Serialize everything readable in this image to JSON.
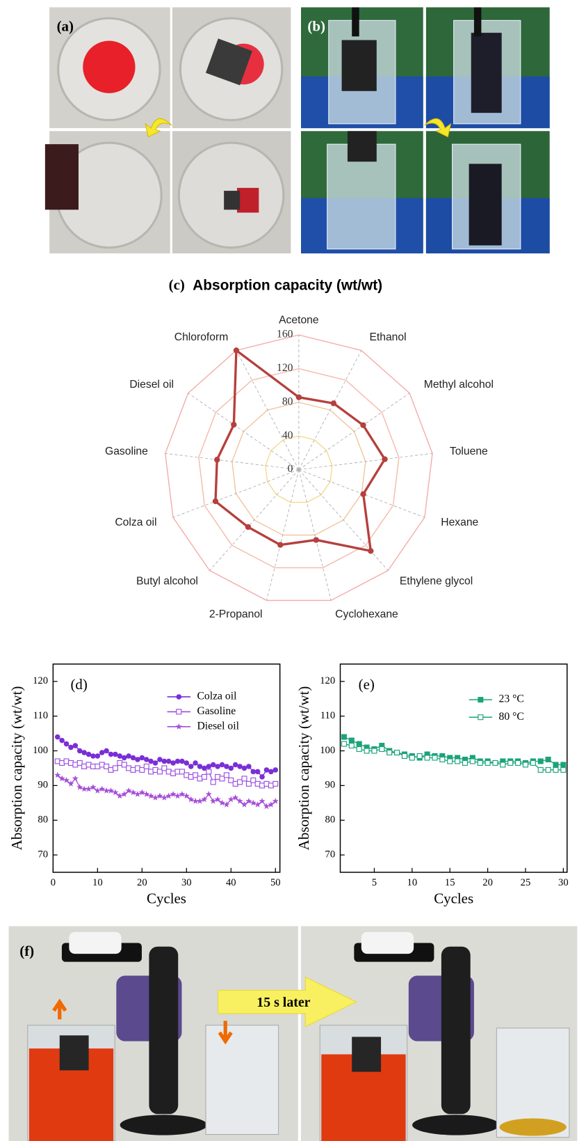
{
  "panels": {
    "a": "(a)",
    "b": "(b)",
    "f": "(f)",
    "f_caption": "15 s later"
  },
  "chart_data": [
    {
      "type": "radar",
      "label": "(c)",
      "title": "Absorption capacity (wt/wt)",
      "categories": [
        "Acetone",
        "Ethanol",
        "Methyl alcohol",
        "Toluene",
        "Hexane",
        "Ethylene glycol",
        "Cyclohexane",
        "2-Propanol",
        "Butyl alcohol",
        "Colza oil",
        "Gasoline",
        "Diesel oil",
        "Chloroform"
      ],
      "values": [
        86,
        89,
        93,
        103,
        82,
        129,
        86,
        92,
        91,
        106,
        98,
        94,
        160
      ],
      "color": "#b5403d",
      "rlim": [
        0,
        160
      ],
      "rticks": [
        0,
        40,
        80,
        120,
        160
      ],
      "grid": true
    },
    {
      "type": "line",
      "label": "(d)",
      "xlabel": "Cycles",
      "ylabel": "Absorption capacity (wt/wt)",
      "x": [
        1,
        2,
        3,
        4,
        5,
        6,
        7,
        8,
        9,
        10,
        11,
        12,
        13,
        14,
        15,
        16,
        17,
        18,
        19,
        20,
        21,
        22,
        23,
        24,
        25,
        26,
        27,
        28,
        29,
        30,
        31,
        32,
        33,
        34,
        35,
        36,
        37,
        38,
        39,
        40,
        41,
        42,
        43,
        44,
        45,
        46,
        47,
        48,
        49,
        50
      ],
      "xlim": [
        0,
        51
      ],
      "xticks": [
        0,
        10,
        20,
        30,
        40,
        50
      ],
      "ylim": [
        65,
        125
      ],
      "yticks": [
        70,
        80,
        90,
        100,
        110,
        120
      ],
      "series": [
        {
          "name": "Colza oil",
          "color": "#7a2fd6",
          "marker": "circle",
          "values": [
            104,
            103,
            102,
            101,
            101.5,
            100,
            99.5,
            99,
            98.5,
            98.5,
            99.5,
            100,
            99,
            99,
            98.5,
            98,
            98.5,
            98,
            97.5,
            98,
            97.5,
            97,
            96.5,
            97.5,
            97,
            97,
            96.5,
            97,
            97,
            96.5,
            95.5,
            96.5,
            95.5,
            95,
            95.5,
            96,
            95.5,
            96,
            95.5,
            95,
            96,
            95.5,
            95,
            95.5,
            94,
            94,
            92.5,
            94.5,
            94,
            94.5
          ]
        },
        {
          "name": "Gasoline",
          "color": "#9a4ee0",
          "marker": "square-open",
          "values": [
            97,
            96.5,
            97,
            96.5,
            96,
            96.5,
            95.5,
            96,
            95.5,
            95.5,
            96,
            95.5,
            94.5,
            95,
            96.5,
            96,
            95,
            94.5,
            95,
            94.5,
            95.5,
            94,
            94.5,
            94,
            95,
            94,
            93.5,
            94,
            94,
            93,
            92.5,
            93,
            92,
            92.5,
            94,
            91,
            92.5,
            92,
            93,
            91.5,
            90.5,
            91,
            92,
            90.5,
            91.5,
            90.5,
            90,
            90.5,
            90,
            90.5
          ]
        },
        {
          "name": "Diesel oil",
          "color": "#a54fd8",
          "marker": "star",
          "values": [
            93,
            92,
            91.5,
            90.5,
            92,
            89.5,
            89,
            89,
            89.5,
            88.5,
            89,
            88.5,
            88.5,
            88,
            87,
            87.5,
            88.5,
            88,
            87.5,
            88,
            87.5,
            87,
            86.5,
            87,
            86.5,
            87,
            87.5,
            87,
            87.5,
            87,
            86,
            85.5,
            85.5,
            86,
            87.5,
            85.5,
            86,
            85,
            84.5,
            86,
            86.5,
            85.5,
            84.5,
            85.5,
            85,
            84.5,
            85.5,
            84,
            84.5,
            85.5
          ]
        }
      ]
    },
    {
      "type": "line",
      "label": "(e)",
      "xlabel": "Cycles",
      "ylabel": "Absorption capacity (wt/wt)",
      "x": [
        1,
        2,
        3,
        4,
        5,
        6,
        7,
        8,
        9,
        10,
        11,
        12,
        13,
        14,
        15,
        16,
        17,
        18,
        19,
        20,
        21,
        22,
        23,
        24,
        25,
        26,
        27,
        28,
        29,
        30
      ],
      "xlim": [
        0.5,
        30.5
      ],
      "xticks": [
        5,
        10,
        15,
        20,
        25,
        30
      ],
      "ylim": [
        65,
        125
      ],
      "yticks": [
        70,
        80,
        90,
        100,
        110,
        120
      ],
      "series": [
        {
          "name": "23 °C",
          "color": "#1ba37a",
          "marker": "square",
          "values": [
            104,
            103,
            102,
            101,
            100.5,
            101.5,
            100,
            99.5,
            99,
            98.5,
            98,
            99,
            98.5,
            98.5,
            98,
            98,
            97.5,
            98,
            97,
            97,
            96.5,
            97,
            97,
            97,
            96.5,
            97,
            97,
            97.5,
            96,
            96
          ]
        },
        {
          "name": "80 °C",
          "color": "#1ba37a",
          "marker": "square-open",
          "values": [
            102,
            101.5,
            100.5,
            100,
            100,
            100.5,
            99.5,
            99.5,
            98.5,
            98,
            98.5,
            98,
            98,
            97.5,
            97,
            97,
            96.5,
            97,
            96.5,
            96.5,
            96.5,
            96,
            96.5,
            96.5,
            96,
            96.5,
            94.5,
            94.5,
            94.5,
            94.5
          ]
        }
      ]
    }
  ]
}
